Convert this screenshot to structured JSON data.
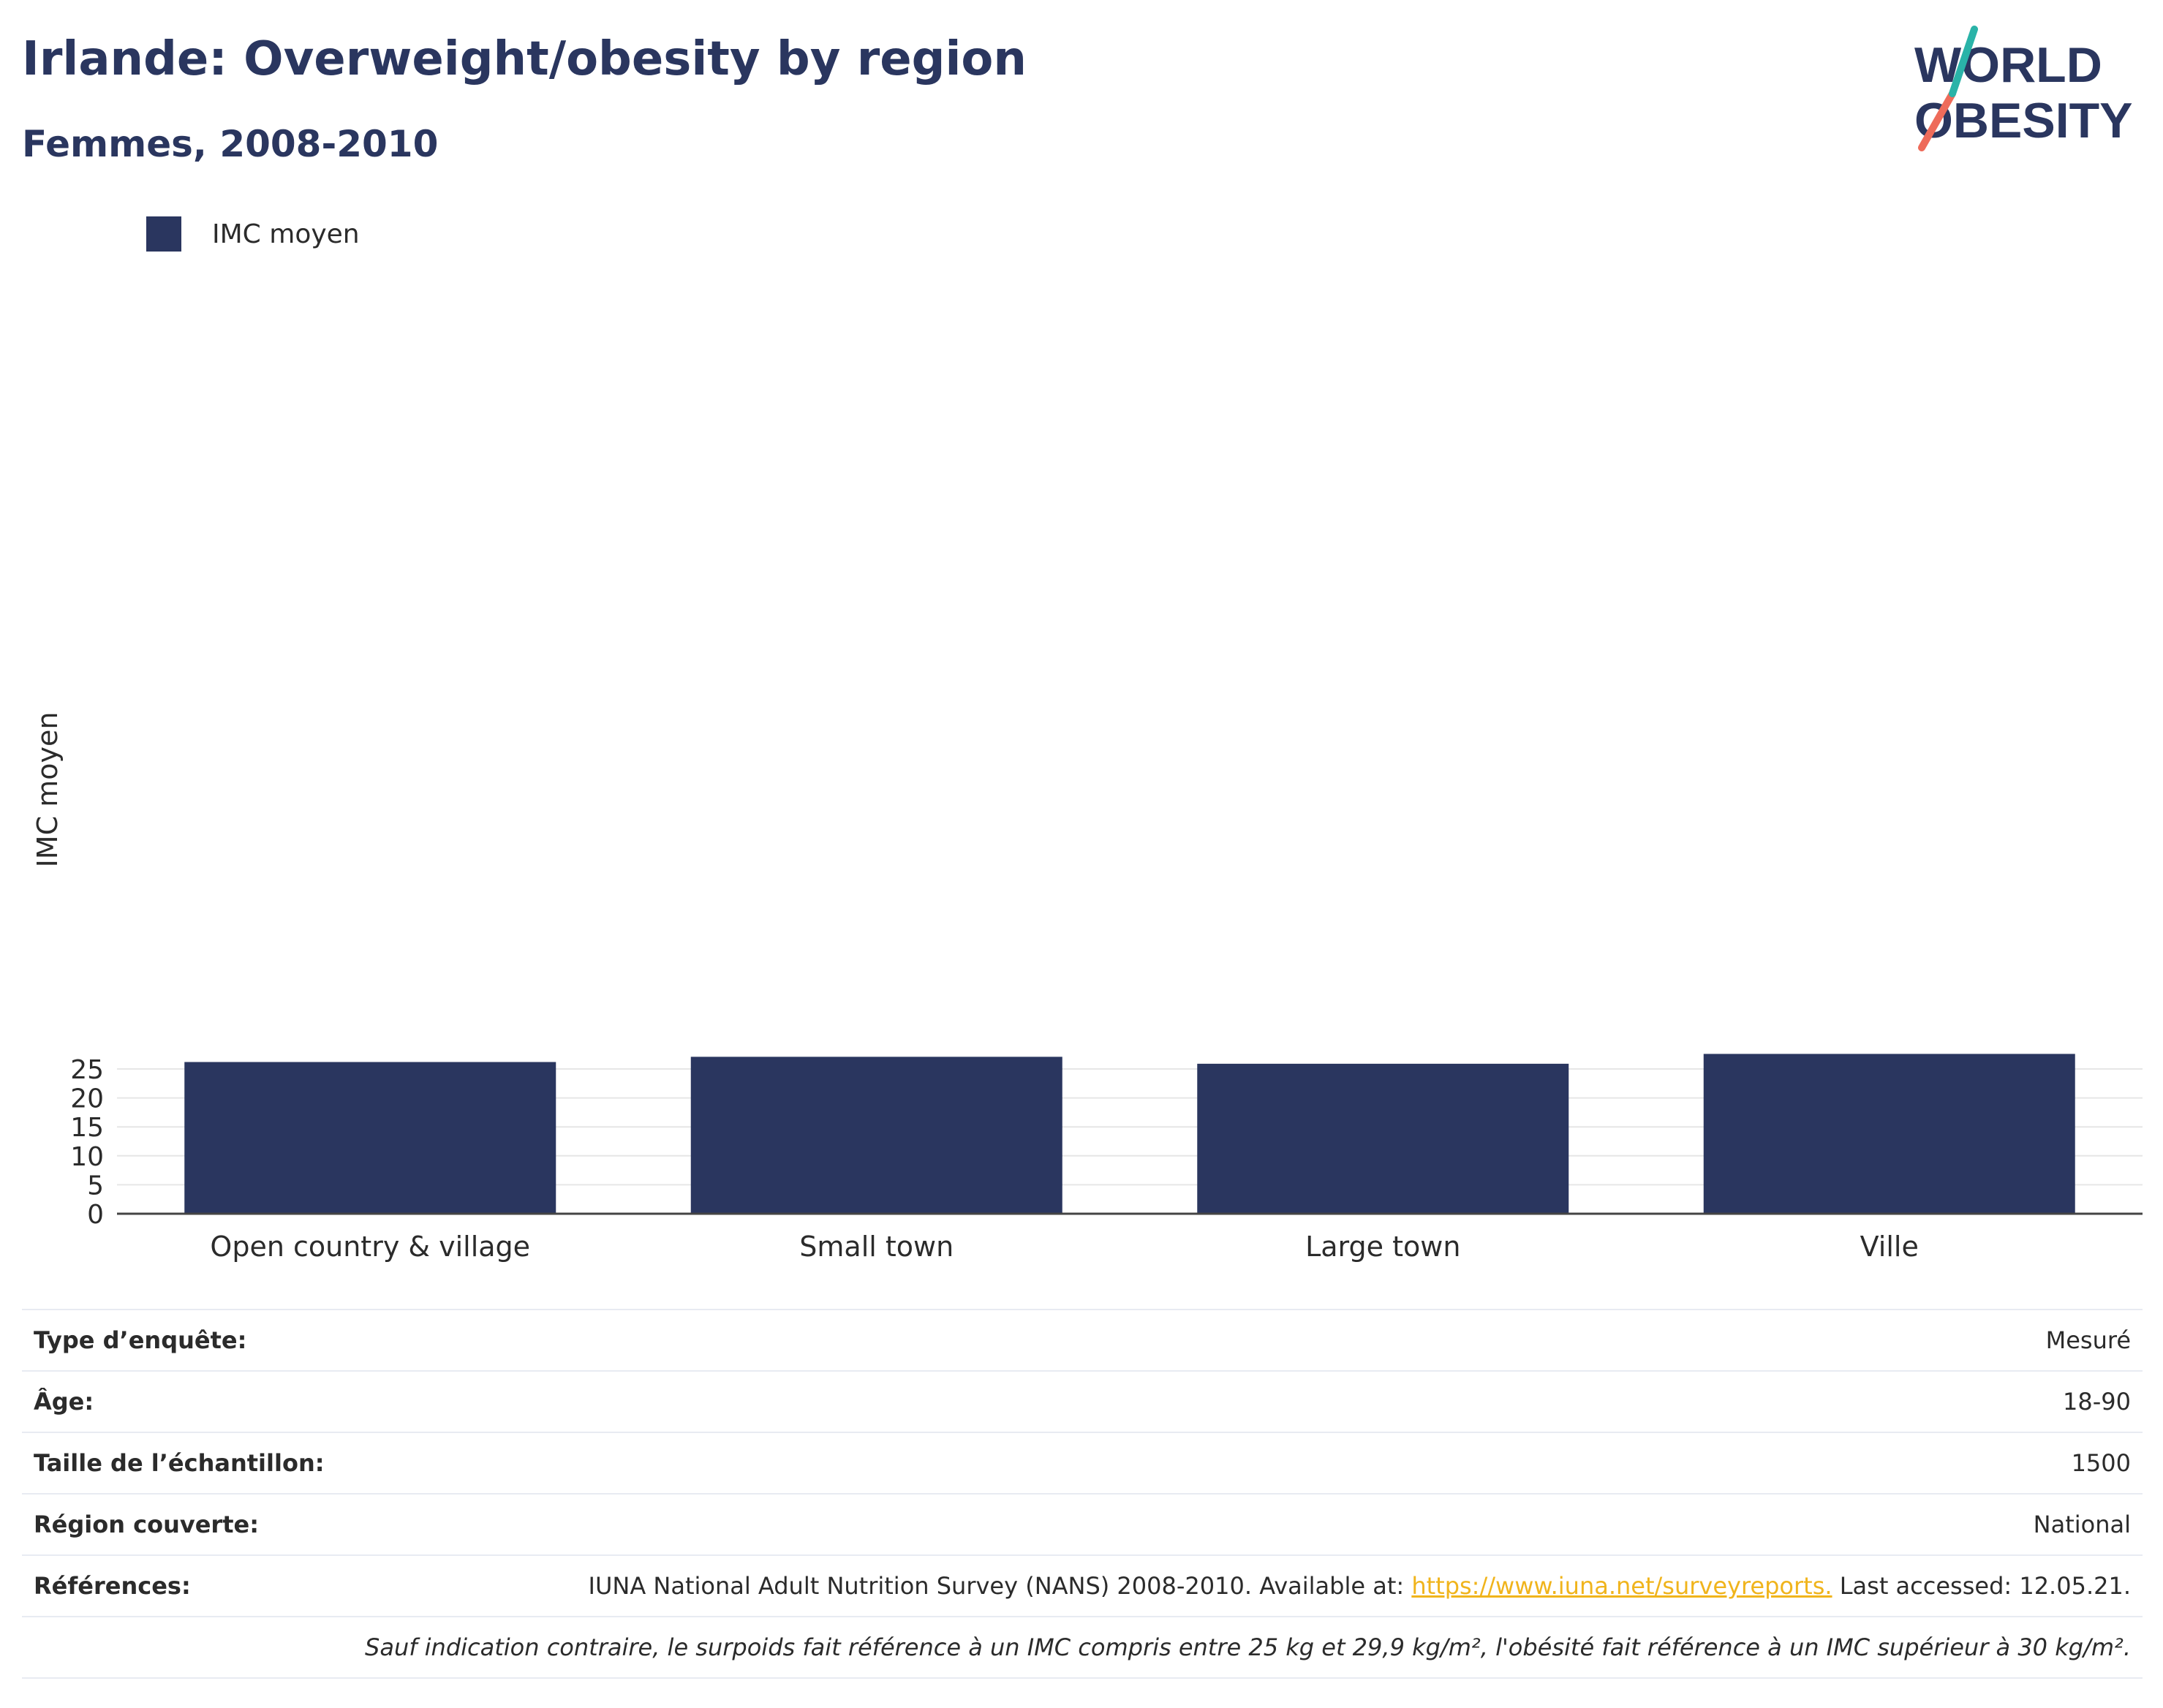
{
  "header": {
    "title": "Irlande: Overweight/obesity by region",
    "subtitle": "Femmes, 2008-2010"
  },
  "logo": {
    "line1": "WORLD",
    "line2": "OBESITY"
  },
  "colors": {
    "bar": "#2a365f",
    "text": "#2a365f",
    "grid": "#e6e6e6",
    "link": "#f0b41c",
    "logo_teal": "#2ab3a8",
    "logo_coral": "#ee6b5a"
  },
  "chart_data": {
    "type": "bar",
    "categories": [
      "Open country & village",
      "Small town",
      "Large town",
      "Ville"
    ],
    "series": [
      {
        "name": "IMC moyen",
        "values": [
          26.2,
          27.1,
          25.9,
          27.6
        ]
      }
    ],
    "ylabel": "IMC moyen",
    "xlabel": "",
    "ylim": [
      0,
      28
    ],
    "yticks": [
      0,
      5,
      10,
      15,
      20,
      25
    ],
    "grid": true,
    "legend": "top-left"
  },
  "info": {
    "rows": [
      {
        "label": "Type d’enquête:",
        "value": "Mesuré"
      },
      {
        "label": "Âge:",
        "value": "18-90"
      },
      {
        "label": "Taille de l’échantillon:",
        "value": "1500"
      },
      {
        "label": "Région couverte:",
        "value": "National"
      }
    ],
    "references": {
      "label": "Références:",
      "before": "IUNA National Adult Nutrition Survey (NANS) 2008-2010. Available at: ",
      "link": "https://www.iuna.net/surveyreports.",
      "after": " Last accessed: 12.05.21."
    },
    "note": "Sauf indication contraire, le surpoids fait référence à un IMC compris entre 25 kg et 29,9 kg/m², l'obésité fait référence à un IMC supérieur à 30 kg/m²."
  }
}
